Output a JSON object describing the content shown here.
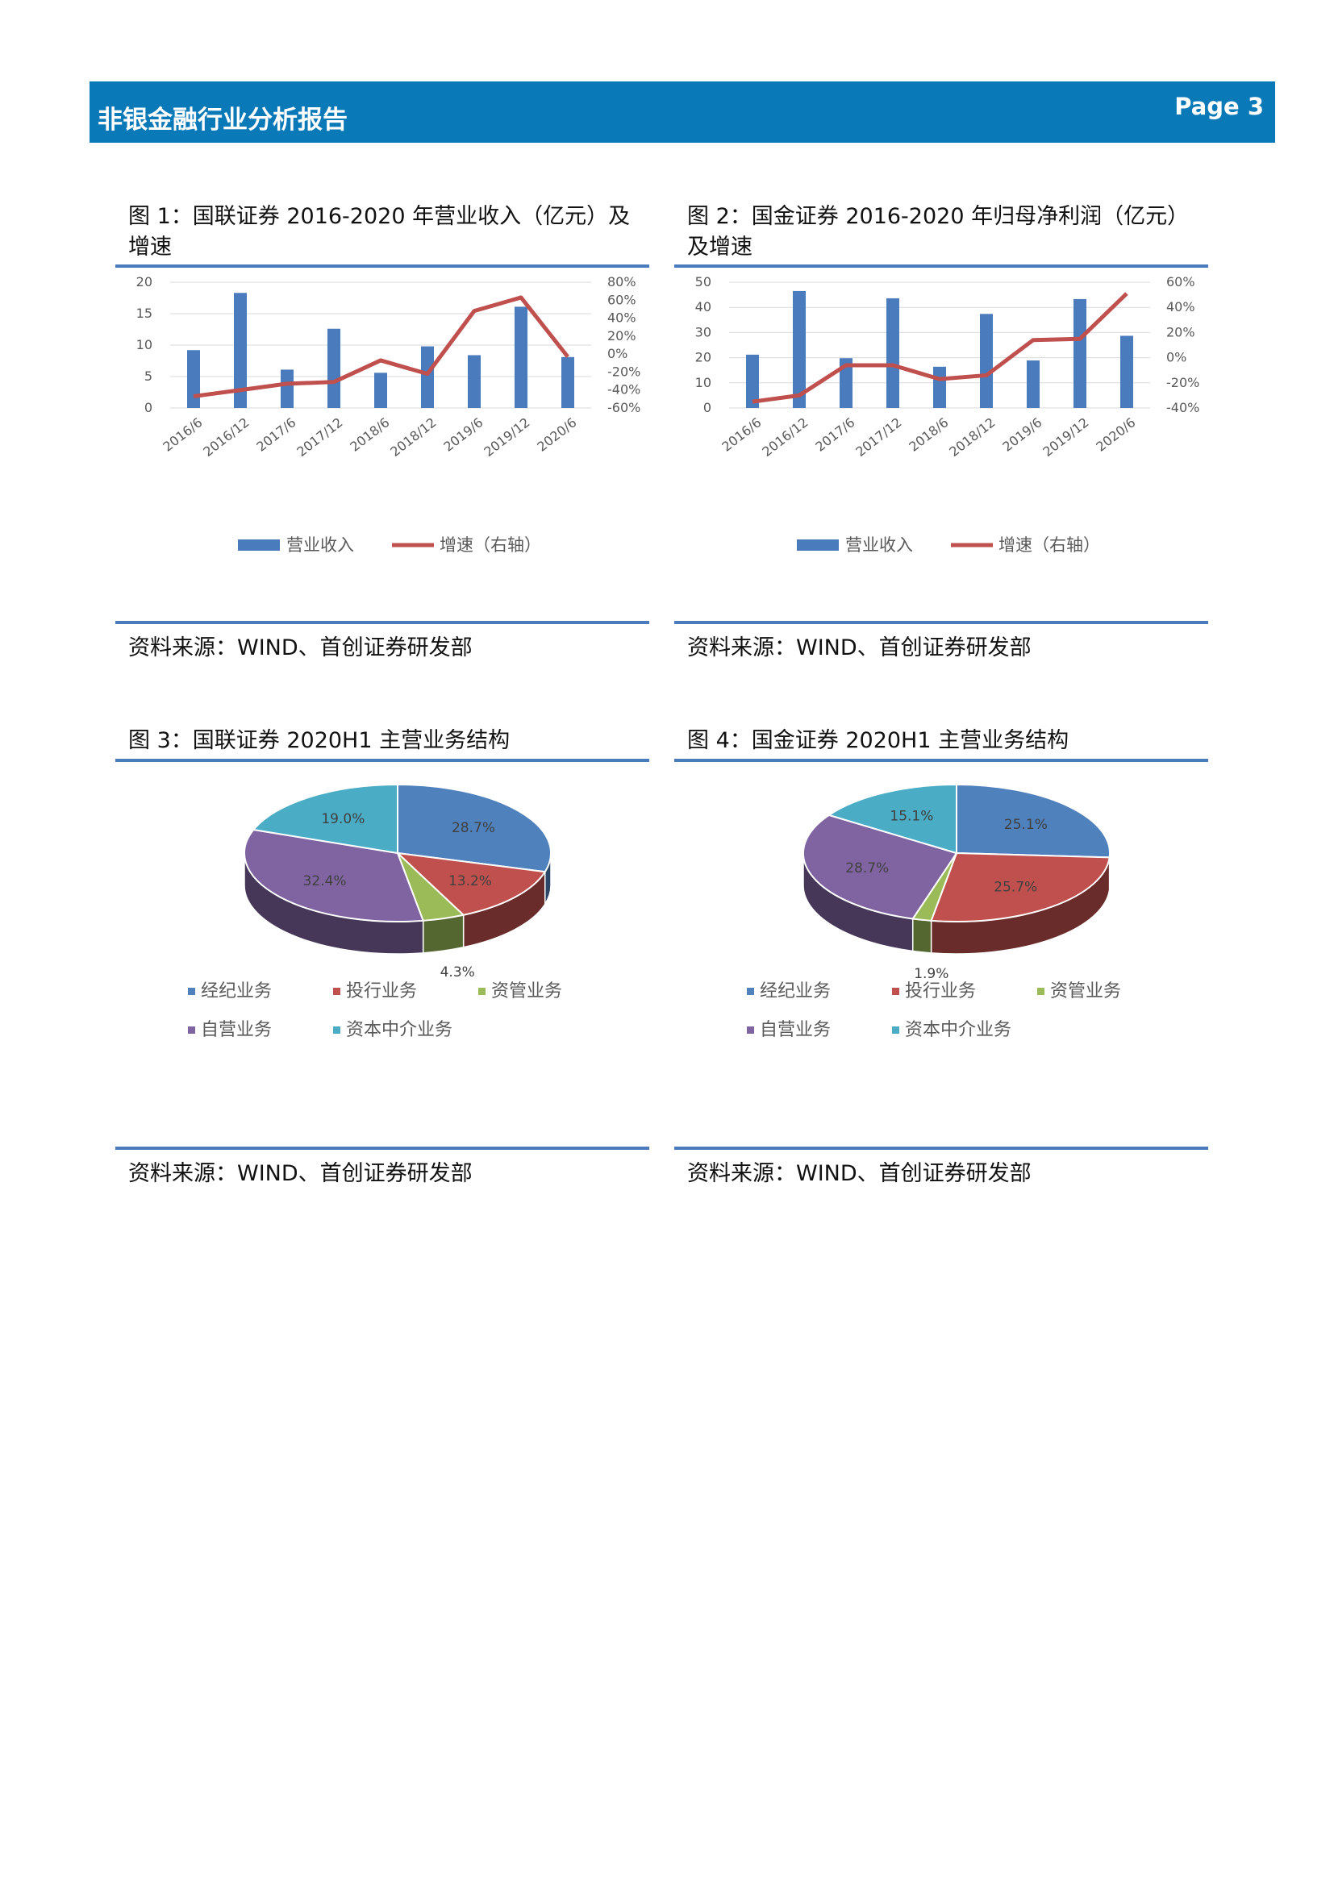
{
  "header": {
    "title": "非银金融行业分析报告",
    "page": "Page 3"
  },
  "figures": [
    {
      "title": "图 1：国联证券 2016-2020 年营业收入（亿元）及增速",
      "source": "资料来源：WIND、首创证券研发部",
      "legend": {
        "bar": "营业收入",
        "line": "增速（右轴）"
      }
    },
    {
      "title": "图 2：国金证券 2016-2020 年归母净利润（亿元）及增速",
      "source": "资料来源：WIND、首创证券研发部",
      "legend": {
        "bar": "营业收入",
        "line": "增速（右轴）"
      }
    },
    {
      "title": "图 3：国联证券 2020H1 主营业务结构",
      "source": "资料来源：WIND、首创证券研发部"
    },
    {
      "title": "图 4：国金证券 2020H1 主营业务结构",
      "source": "资料来源：WIND、首创证券研发部"
    }
  ],
  "colors": {
    "bar": "#4a7bbd",
    "line": "#c0504d",
    "rule": "#4a7bbd",
    "header": "#0a79b8"
  },
  "chart_data": [
    {
      "type": "bar",
      "combo": "bar+line",
      "categories": [
        "2016/6",
        "2016/12",
        "2017/6",
        "2017/12",
        "2018/6",
        "2018/12",
        "2019/6",
        "2019/12",
        "2020/6"
      ],
      "series": [
        {
          "name": "营业收入",
          "axis": "left",
          "type": "bar",
          "values": [
            9.2,
            18.3,
            6.1,
            12.6,
            5.6,
            9.8,
            8.4,
            16.1,
            8.1
          ]
        },
        {
          "name": "增速（右轴）",
          "axis": "right",
          "type": "line",
          "values": [
            -47,
            -40,
            -33,
            -31,
            -7,
            -22,
            48,
            63,
            -3
          ]
        }
      ],
      "left_ticks": [
        "0",
        "5",
        "10",
        "15",
        "20"
      ],
      "right_ticks": [
        "-60%",
        "-40%",
        "-20%",
        "0%",
        "20%",
        "40%",
        "60%",
        "80%"
      ],
      "ylim": [
        0,
        20
      ],
      "y2lim": [
        -60,
        80
      ],
      "grid": true,
      "legend": "bottom"
    },
    {
      "type": "bar",
      "combo": "bar+line",
      "categories": [
        "2016/6",
        "2016/12",
        "2017/6",
        "2017/12",
        "2018/6",
        "2018/12",
        "2019/6",
        "2019/12",
        "2020/6"
      ],
      "series": [
        {
          "name": "营业收入",
          "axis": "left",
          "type": "bar",
          "values": [
            21.2,
            46.5,
            19.8,
            43.6,
            16.4,
            37.4,
            18.9,
            43.3,
            28.7
          ]
        },
        {
          "name": "增速（右轴）",
          "axis": "right",
          "type": "line",
          "values": [
            -35,
            -30,
            -6,
            -6,
            -17,
            -14,
            14,
            15,
            51
          ]
        }
      ],
      "left_ticks": [
        "0",
        "10",
        "20",
        "30",
        "40",
        "50"
      ],
      "right_ticks": [
        "-40%",
        "-20%",
        "0%",
        "20%",
        "40%",
        "60%"
      ],
      "ylim": [
        0,
        50
      ],
      "y2lim": [
        -40,
        60
      ],
      "grid": true,
      "legend": "bottom"
    },
    {
      "type": "pie",
      "slices": [
        {
          "name": "经纪业务",
          "value": 28.7,
          "label": "28.7%",
          "color": "#4f81bd"
        },
        {
          "name": "投行业务",
          "value": 13.2,
          "label": "13.2%",
          "color": "#c0504d"
        },
        {
          "name": "资管业务",
          "value": 4.3,
          "label": "4.3%",
          "color": "#9bbb59"
        },
        {
          "name": "自营业务",
          "value": 32.4,
          "label": "32.4%",
          "color": "#8064a2"
        },
        {
          "name": "资本中介业务",
          "value": 19.0,
          "label": "19.0%",
          "color": "#4bacc6"
        }
      ],
      "legend": "bottom"
    },
    {
      "type": "pie",
      "slices": [
        {
          "name": "经纪业务",
          "value": 25.1,
          "label": "25.1%",
          "color": "#4f81bd"
        },
        {
          "name": "投行业务",
          "value": 25.7,
          "label": "25.7%",
          "color": "#c0504d"
        },
        {
          "name": "资管业务",
          "value": 1.9,
          "label": "1.9%",
          "color": "#9bbb59"
        },
        {
          "name": "自营业务",
          "value": 28.7,
          "label": "28.7%",
          "color": "#8064a2"
        },
        {
          "name": "资本中介业务",
          "value": 15.1,
          "label": "15.1%",
          "color": "#4bacc6"
        }
      ],
      "legend": "bottom"
    }
  ]
}
